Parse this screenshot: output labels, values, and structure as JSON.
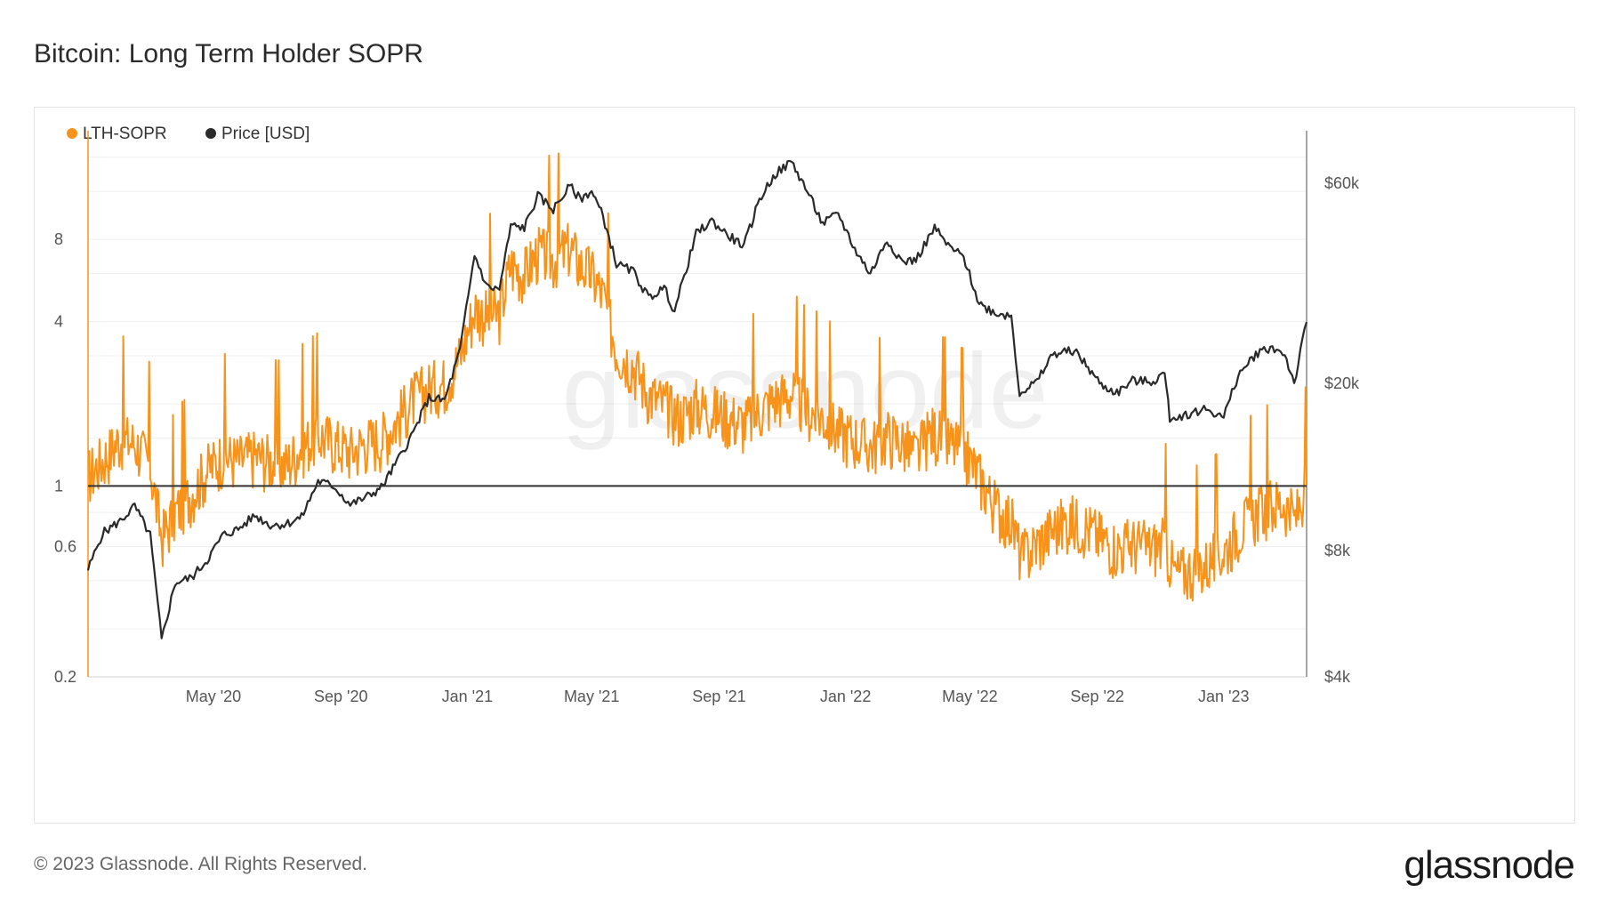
{
  "header": {
    "title": "Bitcoin: Long Term Holder SOPR"
  },
  "footer": {
    "copyright": "© 2023 Glassnode. All Rights Reserved.",
    "brand": "glassnode"
  },
  "watermark": "glassnode",
  "colors": {
    "sopr": "#f7931a",
    "price": "#2a2a2a",
    "baseline": "#333333",
    "grid": "#efefef"
  },
  "chart_data": {
    "type": "line",
    "title": "Bitcoin: Long Term Holder SOPR",
    "legend": [
      {
        "name": "LTH-SOPR",
        "color": "#f7931a"
      },
      {
        "name": "Price [USD]",
        "color": "#2a2a2a"
      }
    ],
    "legend_position": "top-left",
    "x_range": [
      "2020-01-01",
      "2023-03-22"
    ],
    "x_ticks": [
      {
        "date": "2020-05-01",
        "label": "May '20"
      },
      {
        "date": "2020-09-01",
        "label": "Sep '20"
      },
      {
        "date": "2021-01-01",
        "label": "Jan '21"
      },
      {
        "date": "2021-05-01",
        "label": "May '21"
      },
      {
        "date": "2021-09-01",
        "label": "Sep '21"
      },
      {
        "date": "2022-01-01",
        "label": "Jan '22"
      },
      {
        "date": "2022-05-01",
        "label": "May '22"
      },
      {
        "date": "2022-09-01",
        "label": "Sep '22"
      },
      {
        "date": "2023-01-01",
        "label": "Jan '23"
      }
    ],
    "y_left": {
      "scale": "log",
      "range": [
        0.2,
        20
      ],
      "ticks": [
        0.2,
        0.6,
        1,
        4,
        8
      ],
      "tick_labels": [
        "0.2",
        "0.6",
        "1",
        "4",
        "8"
      ]
    },
    "y_right": {
      "scale": "log",
      "range": [
        4000,
        80000
      ],
      "ticks": [
        4000,
        8000,
        20000,
        60000
      ],
      "tick_labels": [
        "$4k",
        "$8k",
        "$20k",
        "$60k"
      ]
    },
    "reference_line": {
      "axis": "left",
      "value": 1
    },
    "series": [
      {
        "name": "LTH-SOPR",
        "axis": "left",
        "color": "#f7931a",
        "points": [
          [
            "2020-01-01",
            1.1
          ],
          [
            "2020-01-15",
            1.25
          ],
          [
            "2020-02-01",
            1.5
          ],
          [
            "2020-02-15",
            1.45
          ],
          [
            "2020-03-01",
            1.2
          ],
          [
            "2020-03-12",
            0.65
          ],
          [
            "2020-03-25",
            0.8
          ],
          [
            "2020-04-10",
            0.95
          ],
          [
            "2020-04-25",
            1.15
          ],
          [
            "2020-05-10",
            1.3
          ],
          [
            "2020-05-25",
            1.25
          ],
          [
            "2020-06-10",
            1.3
          ],
          [
            "2020-06-25",
            1.25
          ],
          [
            "2020-07-10",
            1.2
          ],
          [
            "2020-07-25",
            1.4
          ],
          [
            "2020-08-10",
            1.55
          ],
          [
            "2020-08-25",
            1.45
          ],
          [
            "2020-09-10",
            1.35
          ],
          [
            "2020-09-25",
            1.45
          ],
          [
            "2020-10-10",
            1.5
          ],
          [
            "2020-10-25",
            1.75
          ],
          [
            "2020-11-10",
            2.1
          ],
          [
            "2020-11-25",
            2.3
          ],
          [
            "2020-12-10",
            2.4
          ],
          [
            "2020-12-25",
            3.0
          ],
          [
            "2021-01-08",
            4.5
          ],
          [
            "2021-01-20",
            4.2
          ],
          [
            "2021-02-01",
            4.3
          ],
          [
            "2021-02-12",
            6.5
          ],
          [
            "2021-02-25",
            6.0
          ],
          [
            "2021-03-10",
            7.2
          ],
          [
            "2021-03-25",
            6.8
          ],
          [
            "2021-04-10",
            7.5
          ],
          [
            "2021-04-20",
            6.5
          ],
          [
            "2021-05-01",
            6.0
          ],
          [
            "2021-05-12",
            5.0
          ],
          [
            "2021-05-25",
            3.2
          ],
          [
            "2021-06-10",
            2.8
          ],
          [
            "2021-06-25",
            2.2
          ],
          [
            "2021-07-10",
            2.0
          ],
          [
            "2021-07-25",
            1.8
          ],
          [
            "2021-08-10",
            2.0
          ],
          [
            "2021-08-25",
            1.9
          ],
          [
            "2021-09-10",
            1.8
          ],
          [
            "2021-09-25",
            1.7
          ],
          [
            "2021-10-10",
            1.9
          ],
          [
            "2021-10-25",
            2.1
          ],
          [
            "2021-11-10",
            2.2
          ],
          [
            "2021-11-25",
            1.9
          ],
          [
            "2021-12-10",
            1.8
          ],
          [
            "2021-12-25",
            1.6
          ],
          [
            "2022-01-10",
            1.5
          ],
          [
            "2022-01-25",
            1.4
          ],
          [
            "2022-02-10",
            1.55
          ],
          [
            "2022-02-25",
            1.45
          ],
          [
            "2022-03-10",
            1.3
          ],
          [
            "2022-03-25",
            1.6
          ],
          [
            "2022-04-10",
            1.45
          ],
          [
            "2022-04-25",
            1.35
          ],
          [
            "2022-05-10",
            1.1
          ],
          [
            "2022-05-25",
            0.85
          ],
          [
            "2022-06-10",
            0.75
          ],
          [
            "2022-06-20",
            0.55
          ],
          [
            "2022-07-05",
            0.62
          ],
          [
            "2022-07-20",
            0.7
          ],
          [
            "2022-08-05",
            0.75
          ],
          [
            "2022-08-20",
            0.72
          ],
          [
            "2022-09-05",
            0.65
          ],
          [
            "2022-09-20",
            0.6
          ],
          [
            "2022-10-05",
            0.62
          ],
          [
            "2022-10-20",
            0.6
          ],
          [
            "2022-11-05",
            0.62
          ],
          [
            "2022-11-15",
            0.48
          ],
          [
            "2022-12-01",
            0.5
          ],
          [
            "2022-12-15",
            0.52
          ],
          [
            "2023-01-01",
            0.58
          ],
          [
            "2023-01-15",
            0.7
          ],
          [
            "2023-02-01",
            0.8
          ],
          [
            "2023-02-15",
            0.85
          ],
          [
            "2023-03-01",
            0.88
          ],
          [
            "2023-03-10",
            0.75
          ],
          [
            "2023-03-22",
            1.0
          ]
        ]
      },
      {
        "name": "Price [USD]",
        "axis": "right",
        "color": "#2a2a2a",
        "points": [
          [
            "2020-01-01",
            7200
          ],
          [
            "2020-01-15",
            8800
          ],
          [
            "2020-02-01",
            9400
          ],
          [
            "2020-02-15",
            10200
          ],
          [
            "2020-03-01",
            8700
          ],
          [
            "2020-03-12",
            4900
          ],
          [
            "2020-03-25",
            6700
          ],
          [
            "2020-04-10",
            6900
          ],
          [
            "2020-04-25",
            7600
          ],
          [
            "2020-05-10",
            8700
          ],
          [
            "2020-05-25",
            9000
          ],
          [
            "2020-06-10",
            9700
          ],
          [
            "2020-06-25",
            9200
          ],
          [
            "2020-07-10",
            9250
          ],
          [
            "2020-07-25",
            9600
          ],
          [
            "2020-08-10",
            11700
          ],
          [
            "2020-08-25",
            11400
          ],
          [
            "2020-09-10",
            10300
          ],
          [
            "2020-09-25",
            10700
          ],
          [
            "2020-10-10",
            11300
          ],
          [
            "2020-10-25",
            13000
          ],
          [
            "2020-11-10",
            15300
          ],
          [
            "2020-11-25",
            18500
          ],
          [
            "2020-12-10",
            18200
          ],
          [
            "2020-12-25",
            24000
          ],
          [
            "2021-01-08",
            40500
          ],
          [
            "2021-01-20",
            34000
          ],
          [
            "2021-02-01",
            33500
          ],
          [
            "2021-02-12",
            47500
          ],
          [
            "2021-02-25",
            47000
          ],
          [
            "2021-03-10",
            56000
          ],
          [
            "2021-03-25",
            52000
          ],
          [
            "2021-04-10",
            59000
          ],
          [
            "2021-04-20",
            55000
          ],
          [
            "2021-05-01",
            57500
          ],
          [
            "2021-05-12",
            50000
          ],
          [
            "2021-05-25",
            38500
          ],
          [
            "2021-06-10",
            37000
          ],
          [
            "2021-06-25",
            32000
          ],
          [
            "2021-07-10",
            33800
          ],
          [
            "2021-07-20",
            29800
          ],
          [
            "2021-08-10",
            45500
          ],
          [
            "2021-08-25",
            48800
          ],
          [
            "2021-09-10",
            45000
          ],
          [
            "2021-09-25",
            42500
          ],
          [
            "2021-10-10",
            55000
          ],
          [
            "2021-10-25",
            63000
          ],
          [
            "2021-11-10",
            67500
          ],
          [
            "2021-11-25",
            57500
          ],
          [
            "2021-12-10",
            48000
          ],
          [
            "2021-12-25",
            50800
          ],
          [
            "2022-01-10",
            41800
          ],
          [
            "2022-01-25",
            36500
          ],
          [
            "2022-02-10",
            44000
          ],
          [
            "2022-02-25",
            39000
          ],
          [
            "2022-03-10",
            39400
          ],
          [
            "2022-03-28",
            47000
          ],
          [
            "2022-04-10",
            42500
          ],
          [
            "2022-04-25",
            40000
          ],
          [
            "2022-05-10",
            31000
          ],
          [
            "2022-05-25",
            29500
          ],
          [
            "2022-06-10",
            29000
          ],
          [
            "2022-06-18",
            19000
          ],
          [
            "2022-07-05",
            20200
          ],
          [
            "2022-07-20",
            23500
          ],
          [
            "2022-08-10",
            24000
          ],
          [
            "2022-08-25",
            21500
          ],
          [
            "2022-09-05",
            19800
          ],
          [
            "2022-09-20",
            19000
          ],
          [
            "2022-10-05",
            20300
          ],
          [
            "2022-10-25",
            20200
          ],
          [
            "2022-11-05",
            21200
          ],
          [
            "2022-11-10",
            16500
          ],
          [
            "2022-12-01",
            17000
          ],
          [
            "2022-12-15",
            17400
          ],
          [
            "2023-01-01",
            16600
          ],
          [
            "2023-01-15",
            20900
          ],
          [
            "2023-02-01",
            23500
          ],
          [
            "2023-02-15",
            24400
          ],
          [
            "2023-03-01",
            23500
          ],
          [
            "2023-03-10",
            20000
          ],
          [
            "2023-03-22",
            28000
          ]
        ]
      }
    ]
  }
}
